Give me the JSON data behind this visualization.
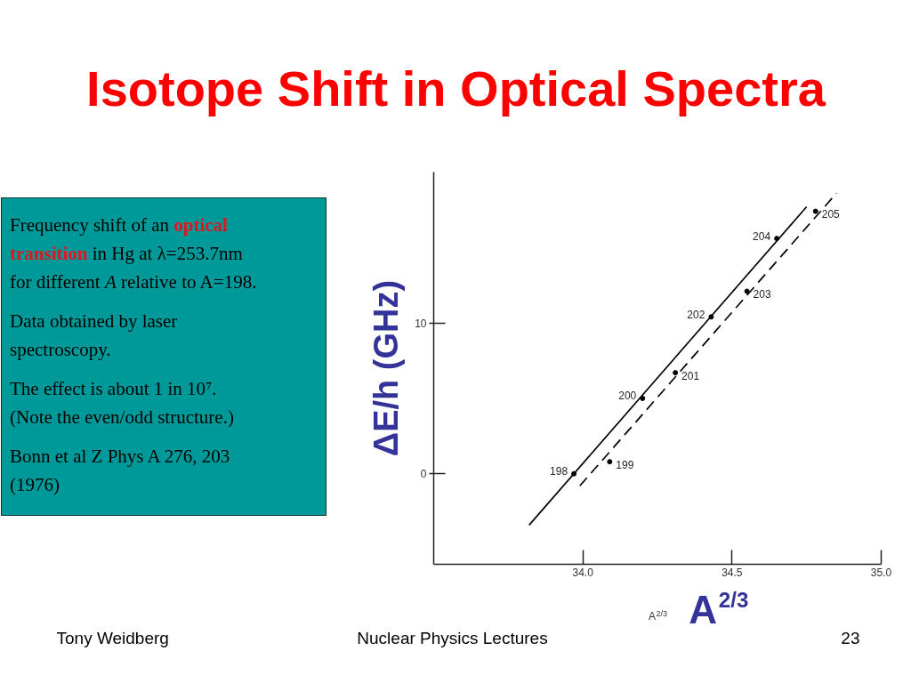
{
  "chart_data": {
    "type": "scatter",
    "title": "Isotope Shift in Optical Spectra",
    "xlabel": "A$^{2/3}$",
    "ylabel": "ΔE/h (GHz)",
    "xlim": [
      33.5,
      35.0
    ],
    "ylim": [
      -6,
      20
    ],
    "xticks": [
      {
        "value": 34,
        "label": "34.0"
      },
      {
        "value": 34.5,
        "label": "34.5"
      },
      {
        "value": 35,
        "label": "35.0"
      }
    ],
    "yticks": [
      0,
      10
    ],
    "marker": "circle",
    "series": [
      {
        "color": "#000000",
        "x": [
          33.97,
          34.2,
          34.43,
          34.65
        ],
        "values": [
          0,
          5.0,
          10.4,
          15.6
        ]
      },
      {
        "color": "#000000",
        "x": [
          34.09,
          34.31,
          34.55,
          34.78
        ],
        "values": [
          0.8,
          6.7,
          12.1,
          17.4
        ]
      },
      {
        "type": "line",
        "color": "#000000",
        "marker": "none",
        "line_style": "solid",
        "x": [
          33.82,
          34.75
        ],
        "values": [
          -3.4,
          17.7
        ]
      },
      {
        "type": "line",
        "color": "#000000",
        "marker": "none",
        "line_style": "dashed",
        "x": [
          33.99,
          34.85
        ],
        "values": [
          -0.8,
          18.6
        ]
      }
    ],
    "annotations": [
      "Frequency shift of an optical\ntransition in Hg at λ=253.7nm\nfor different A relative to A=198.",
      "Data obtained by laser\nspectroscopy.",
      "The effect is about 1 in 10⁷.\n(Note the even/odd structure.)",
      "Bonn et al Z Phys A 276, 203\n(1976)",
      "A$^{2/3}$",
      "Tony Weidberg",
      "Nuclear Physics Lectures",
      "23",
      {
        "text": "198",
        "x": 33.97,
        "y": 0
      },
      {
        "text": "199",
        "x": 34.09,
        "y": 0.8
      },
      {
        "text": "200",
        "x": 34.2,
        "y": 5.0
      },
      {
        "text": "201",
        "x": 34.31,
        "y": 6.7
      },
      {
        "text": "202",
        "x": 34.43,
        "y": 10.4
      },
      {
        "text": "203",
        "x": 34.55,
        "y": 12.1
      },
      {
        "text": "204",
        "x": 34.65,
        "y": 15.6
      },
      {
        "text": "205",
        "x": 34.78,
        "y": 17.4
      }
    ]
  }
}
